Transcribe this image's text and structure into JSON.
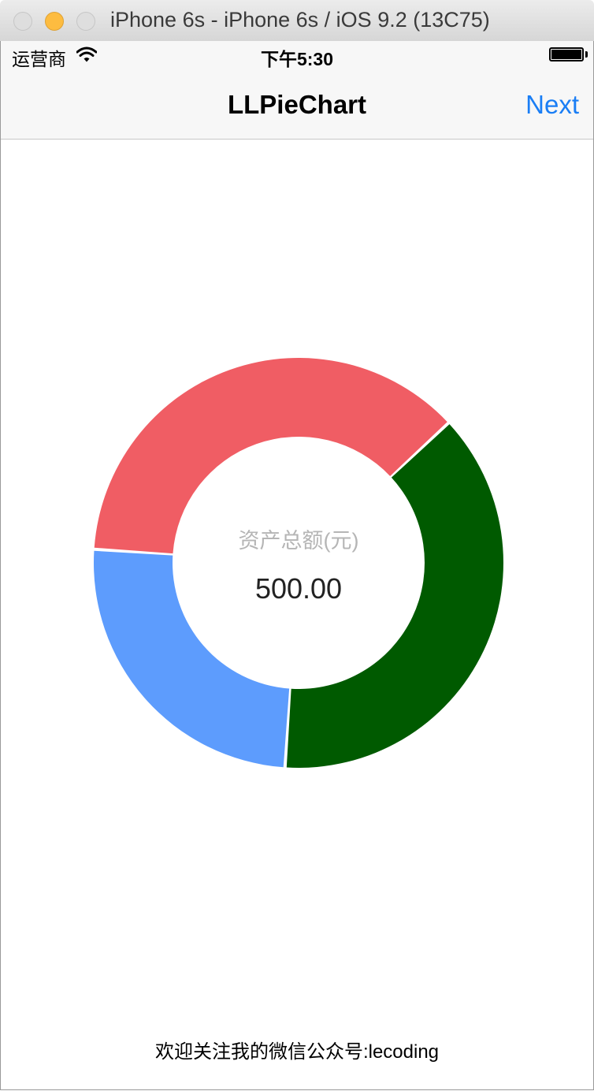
{
  "window": {
    "title": "iPhone 6s - iPhone 6s / iOS 9.2 (13C75)"
  },
  "status_bar": {
    "carrier": "运营商",
    "time": "下午5:30"
  },
  "nav": {
    "title": "LLPieChart",
    "next_label": "Next"
  },
  "chart_data": {
    "type": "pie",
    "style": "donut",
    "center_label": "资产总额(元)",
    "center_value": "500.00",
    "slices": [
      {
        "color": "#005a00",
        "fraction": 0.38
      },
      {
        "color": "#5d9cfd",
        "fraction": 0.25
      },
      {
        "color": "#f05d64",
        "fraction": 0.37
      }
    ]
  },
  "footer": {
    "text": "欢迎关注我的微信公众号:lecoding"
  }
}
